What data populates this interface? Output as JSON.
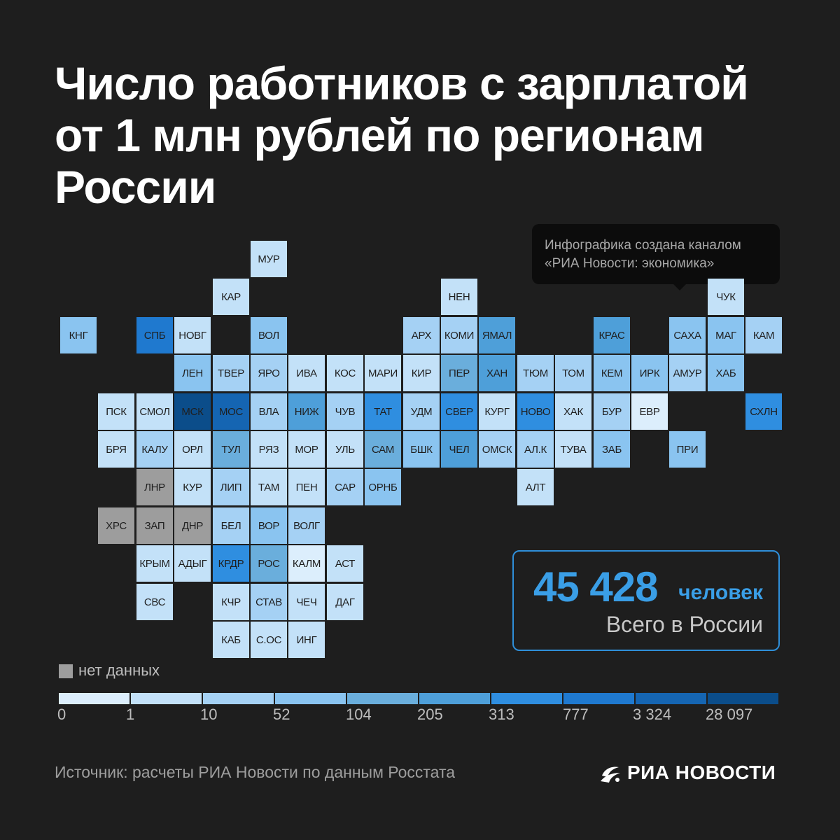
{
  "title": [
    "Число работников с зарплатой",
    "от 1 млн рублей по регионам",
    "России"
  ],
  "credit": [
    "Инфографика создана каналом",
    "«РИА Новости: экономика»"
  ],
  "total": {
    "value": "45 428",
    "unit": "человек",
    "label": "Всего в России"
  },
  "legend": {
    "no_data_label": "нет данных",
    "no_data_color": "#9d9d9d",
    "ticks": [
      "0",
      "1",
      "10",
      "52",
      "104",
      "205",
      "313",
      "777",
      "3 324",
      "28 097"
    ],
    "colors": [
      "#dceefc",
      "#c3e1f8",
      "#a5d1f4",
      "#8ac4f0",
      "#6aaedc",
      "#4e9fd9",
      "#2f8ee0",
      "#1f79cf",
      "#1565b2",
      "#0b4d8a"
    ]
  },
  "source": "Источник: расчеты РИА Новости по данным Росстата",
  "brand": "РИА НОВОСТИ",
  "regions": [
    {
      "l": "МУР",
      "c": 5,
      "r": 0,
      "b": 1
    },
    {
      "l": "КАР",
      "c": 4,
      "r": 1,
      "b": 1
    },
    {
      "l": "НЕН",
      "c": 10,
      "r": 1,
      "b": 1
    },
    {
      "l": "ЧУК",
      "c": 17,
      "r": 1,
      "b": 1
    },
    {
      "l": "КНГ",
      "c": 0,
      "r": 2,
      "b": 3
    },
    {
      "l": "СПБ",
      "c": 2,
      "r": 2,
      "b": 7
    },
    {
      "l": "НОВГ",
      "c": 3,
      "r": 2,
      "b": 1
    },
    {
      "l": "ВОЛ",
      "c": 5,
      "r": 2,
      "b": 3
    },
    {
      "l": "АРХ",
      "c": 9,
      "r": 2,
      "b": 2
    },
    {
      "l": "КОМИ",
      "c": 10,
      "r": 2,
      "b": 2
    },
    {
      "l": "ЯМАЛ",
      "c": 11,
      "r": 2,
      "b": 5
    },
    {
      "l": "КРАС",
      "c": 14,
      "r": 2,
      "b": 5
    },
    {
      "l": "САХА",
      "c": 16,
      "r": 2,
      "b": 3
    },
    {
      "l": "МАГ",
      "c": 17,
      "r": 2,
      "b": 3
    },
    {
      "l": "КАМ",
      "c": 18,
      "r": 2,
      "b": 2
    },
    {
      "l": "ЛЕН",
      "c": 3,
      "r": 3,
      "b": 3
    },
    {
      "l": "ТВЕР",
      "c": 4,
      "r": 3,
      "b": 2
    },
    {
      "l": "ЯРО",
      "c": 5,
      "r": 3,
      "b": 2
    },
    {
      "l": "ИВА",
      "c": 6,
      "r": 3,
      "b": 1
    },
    {
      "l": "КОС",
      "c": 7,
      "r": 3,
      "b": 1
    },
    {
      "l": "МАРИ",
      "c": 8,
      "r": 3,
      "b": 1
    },
    {
      "l": "КИР",
      "c": 9,
      "r": 3,
      "b": 1
    },
    {
      "l": "ПЕР",
      "c": 10,
      "r": 3,
      "b": 4
    },
    {
      "l": "ХАН",
      "c": 11,
      "r": 3,
      "b": 5
    },
    {
      "l": "ТЮМ",
      "c": 12,
      "r": 3,
      "b": 2
    },
    {
      "l": "ТОМ",
      "c": 13,
      "r": 3,
      "b": 2
    },
    {
      "l": "КЕМ",
      "c": 14,
      "r": 3,
      "b": 3
    },
    {
      "l": "ИРК",
      "c": 15,
      "r": 3,
      "b": 3
    },
    {
      "l": "АМУР",
      "c": 16,
      "r": 3,
      "b": 2
    },
    {
      "l": "ХАБ",
      "c": 17,
      "r": 3,
      "b": 3
    },
    {
      "l": "ПСК",
      "c": 1,
      "r": 4,
      "b": 1
    },
    {
      "l": "СМОЛ",
      "c": 2,
      "r": 4,
      "b": 1
    },
    {
      "l": "МСК",
      "c": 3,
      "r": 4,
      "b": 9
    },
    {
      "l": "МОС",
      "c": 4,
      "r": 4,
      "b": 8
    },
    {
      "l": "ВЛА",
      "c": 5,
      "r": 4,
      "b": 2
    },
    {
      "l": "НИЖ",
      "c": 6,
      "r": 4,
      "b": 5
    },
    {
      "l": "ЧУВ",
      "c": 7,
      "r": 4,
      "b": 2
    },
    {
      "l": "ТАТ",
      "c": 8,
      "r": 4,
      "b": 6
    },
    {
      "l": "УДМ",
      "c": 9,
      "r": 4,
      "b": 2
    },
    {
      "l": "СВЕР",
      "c": 10,
      "r": 4,
      "b": 6
    },
    {
      "l": "КУРГ",
      "c": 11,
      "r": 4,
      "b": 1
    },
    {
      "l": "НОВО",
      "c": 12,
      "r": 4,
      "b": 6
    },
    {
      "l": "ХАК",
      "c": 13,
      "r": 4,
      "b": 1
    },
    {
      "l": "БУР",
      "c": 14,
      "r": 4,
      "b": 2
    },
    {
      "l": "ЕВР",
      "c": 15,
      "r": 4,
      "b": 0
    },
    {
      "l": "СХЛН",
      "c": 18,
      "r": 4,
      "b": 6
    },
    {
      "l": "БРЯ",
      "c": 1,
      "r": 5,
      "b": 1
    },
    {
      "l": "КАЛУ",
      "c": 2,
      "r": 5,
      "b": 2
    },
    {
      "l": "ОРЛ",
      "c": 3,
      "r": 5,
      "b": 1
    },
    {
      "l": "ТУЛ",
      "c": 4,
      "r": 5,
      "b": 4
    },
    {
      "l": "РЯЗ",
      "c": 5,
      "r": 5,
      "b": 1
    },
    {
      "l": "МОР",
      "c": 6,
      "r": 5,
      "b": 1
    },
    {
      "l": "УЛЬ",
      "c": 7,
      "r": 5,
      "b": 1
    },
    {
      "l": "САМ",
      "c": 8,
      "r": 5,
      "b": 4
    },
    {
      "l": "БШК",
      "c": 9,
      "r": 5,
      "b": 3
    },
    {
      "l": "ЧЕЛ",
      "c": 10,
      "r": 5,
      "b": 5
    },
    {
      "l": "ОМСК",
      "c": 11,
      "r": 5,
      "b": 2
    },
    {
      "l": "АЛ.К",
      "c": 12,
      "r": 5,
      "b": 2
    },
    {
      "l": "ТУВА",
      "c": 13,
      "r": 5,
      "b": 1
    },
    {
      "l": "ЗАБ",
      "c": 14,
      "r": 5,
      "b": 3
    },
    {
      "l": "ПРИ",
      "c": 16,
      "r": 5,
      "b": 3
    },
    {
      "l": "ЛНР",
      "c": 2,
      "r": 6,
      "b": -1
    },
    {
      "l": "КУР",
      "c": 3,
      "r": 6,
      "b": 1
    },
    {
      "l": "ЛИП",
      "c": 4,
      "r": 6,
      "b": 2
    },
    {
      "l": "ТАМ",
      "c": 5,
      "r": 6,
      "b": 1
    },
    {
      "l": "ПЕН",
      "c": 6,
      "r": 6,
      "b": 1
    },
    {
      "l": "САР",
      "c": 7,
      "r": 6,
      "b": 2
    },
    {
      "l": "ОРНБ",
      "c": 8,
      "r": 6,
      "b": 3
    },
    {
      "l": "АЛТ",
      "c": 12,
      "r": 6,
      "b": 1
    },
    {
      "l": "ХРС",
      "c": 1,
      "r": 7,
      "b": -1
    },
    {
      "l": "ЗАП",
      "c": 2,
      "r": 7,
      "b": -1
    },
    {
      "l": "ДНР",
      "c": 3,
      "r": 7,
      "b": -1
    },
    {
      "l": "БЕЛ",
      "c": 4,
      "r": 7,
      "b": 2
    },
    {
      "l": "ВОР",
      "c": 5,
      "r": 7,
      "b": 3
    },
    {
      "l": "ВОЛГ",
      "c": 6,
      "r": 7,
      "b": 2
    },
    {
      "l": "КРЫМ",
      "c": 2,
      "r": 8,
      "b": 1
    },
    {
      "l": "АДЫГ",
      "c": 3,
      "r": 8,
      "b": 1
    },
    {
      "l": "КРДР",
      "c": 4,
      "r": 8,
      "b": 6
    },
    {
      "l": "РОС",
      "c": 5,
      "r": 8,
      "b": 4
    },
    {
      "l": "КАЛМ",
      "c": 6,
      "r": 8,
      "b": 0
    },
    {
      "l": "АСТ",
      "c": 7,
      "r": 8,
      "b": 1
    },
    {
      "l": "СВС",
      "c": 2,
      "r": 9,
      "b": 1
    },
    {
      "l": "КЧР",
      "c": 4,
      "r": 9,
      "b": 1
    },
    {
      "l": "СТАВ",
      "c": 5,
      "r": 9,
      "b": 2
    },
    {
      "l": "ЧЕЧ",
      "c": 6,
      "r": 9,
      "b": 1
    },
    {
      "l": "ДАГ",
      "c": 7,
      "r": 9,
      "b": 1
    },
    {
      "l": "КАБ",
      "c": 4,
      "r": 10,
      "b": 1
    },
    {
      "l": "С.ОС",
      "c": 5,
      "r": 10,
      "b": 1
    },
    {
      "l": "ИНГ",
      "c": 6,
      "r": 10,
      "b": 1
    }
  ]
}
